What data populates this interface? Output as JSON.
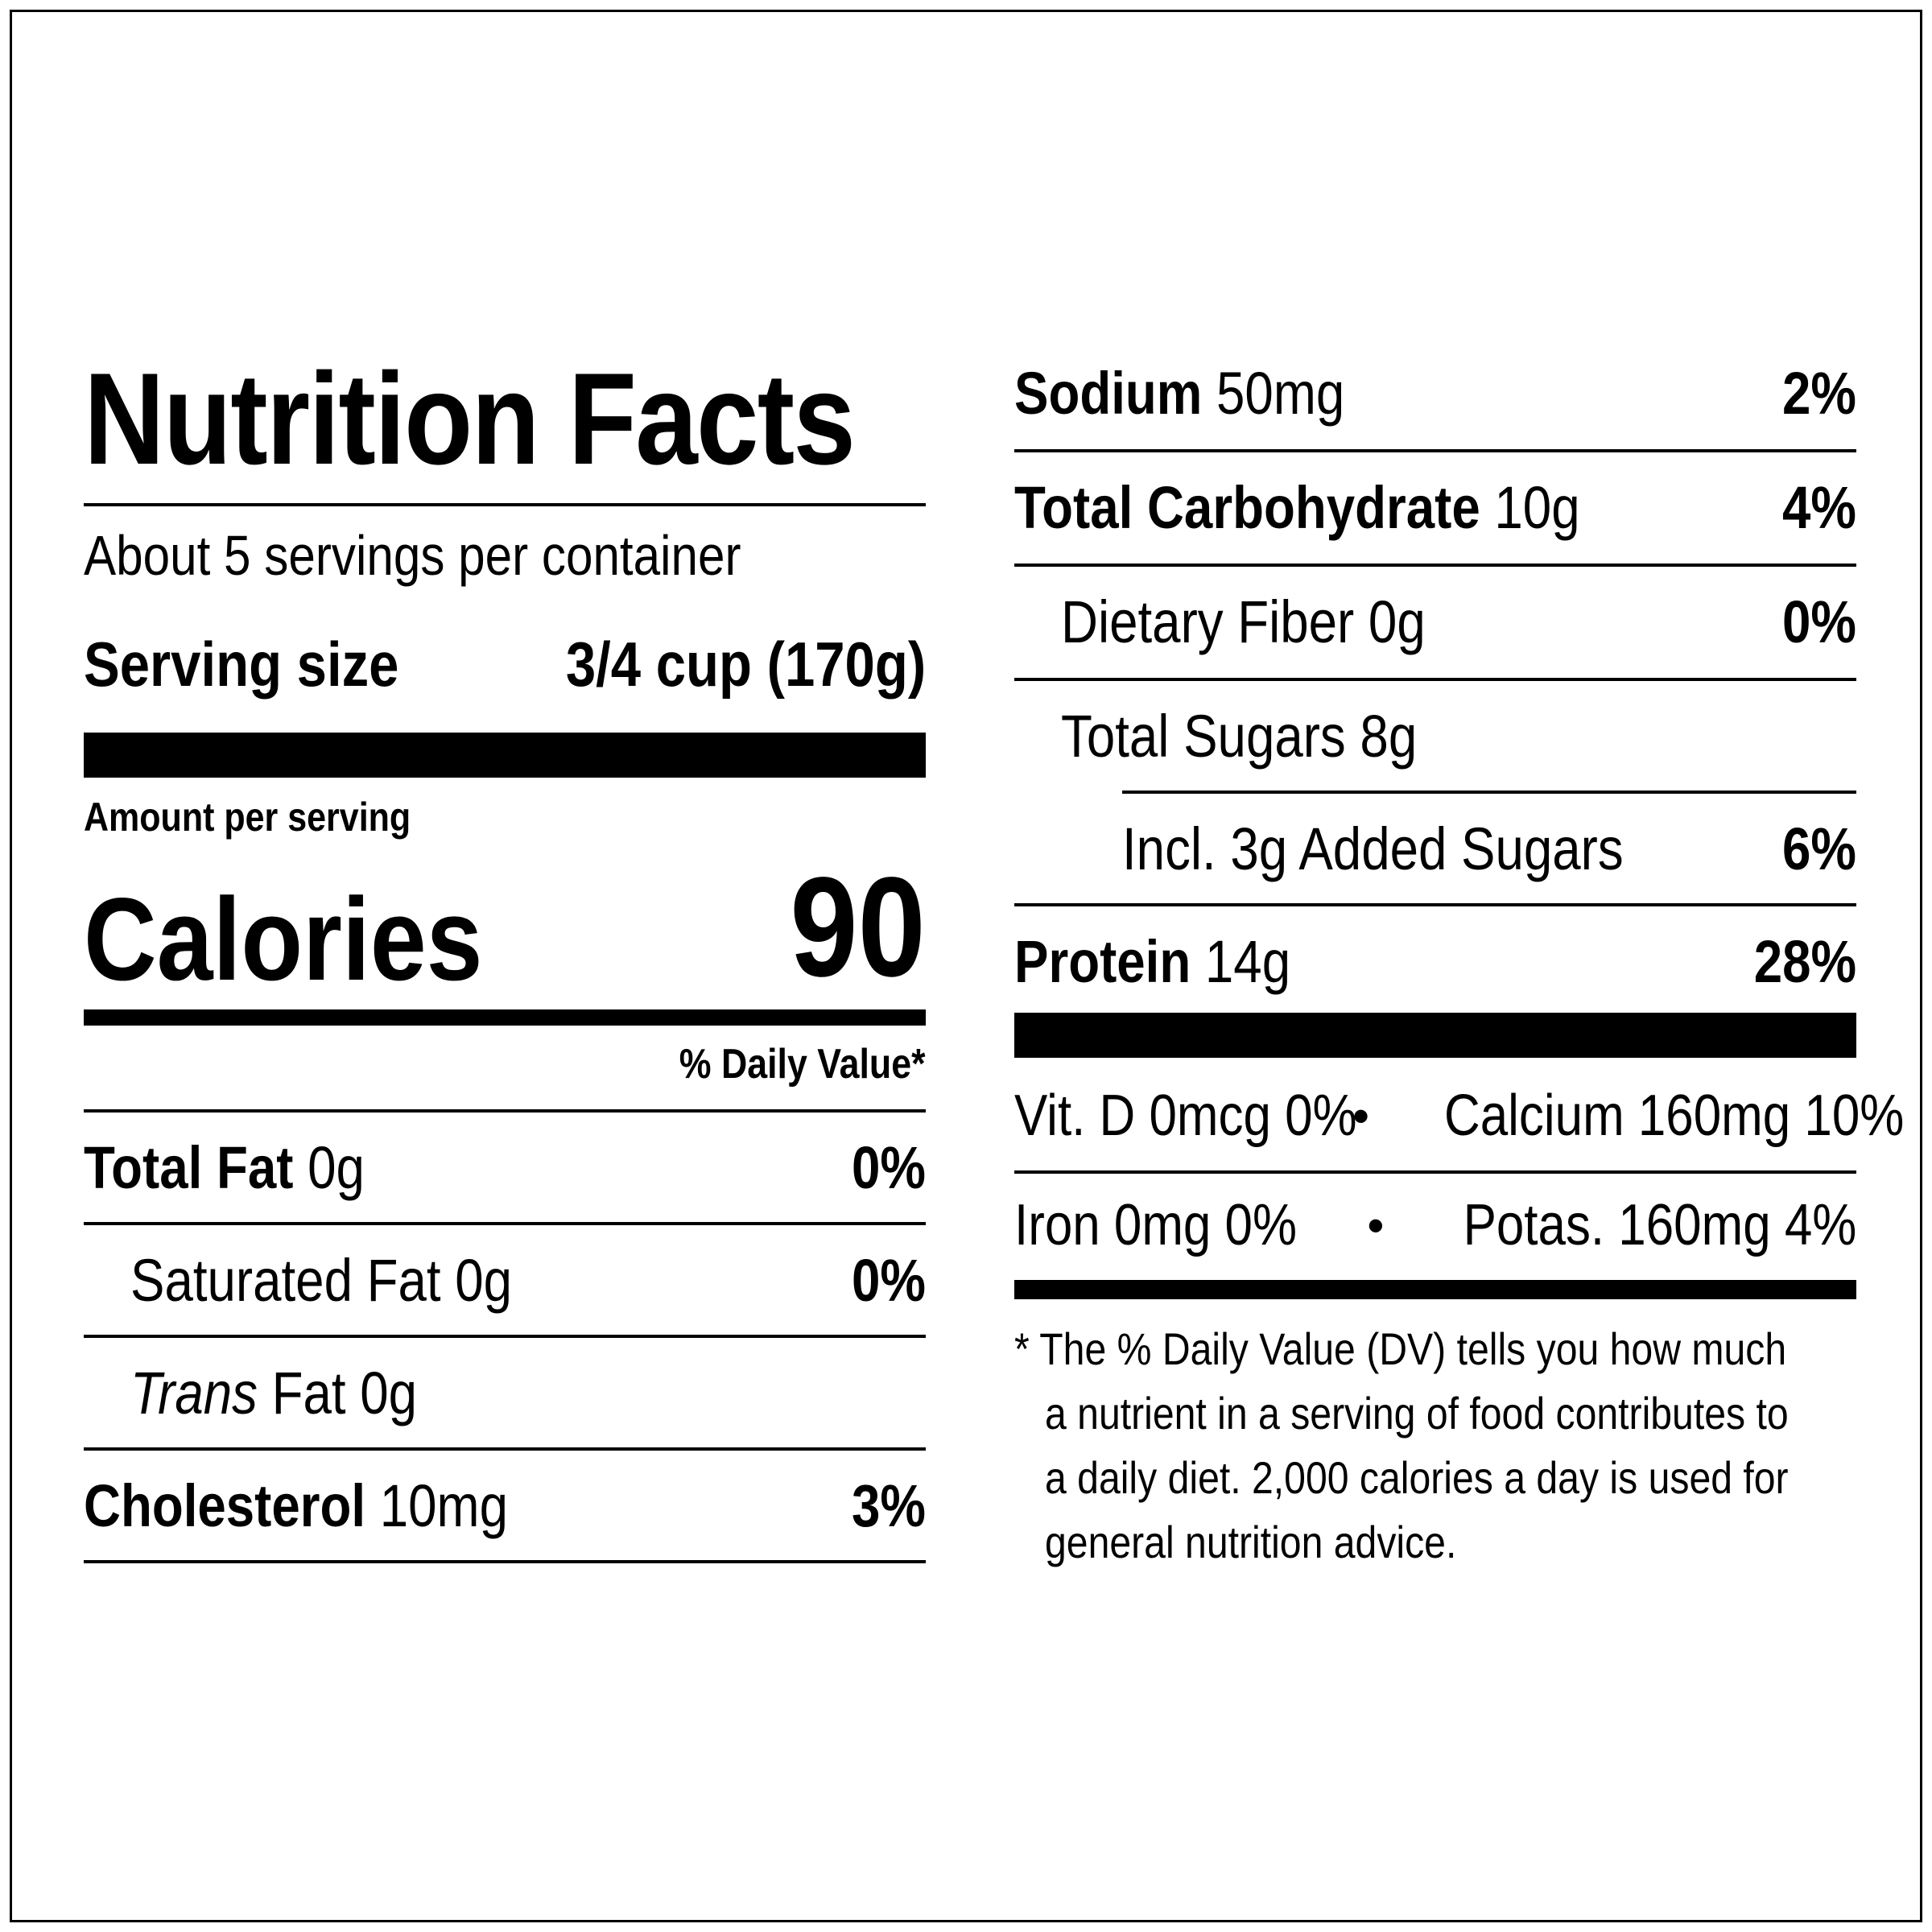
{
  "title": "Nutrition Facts",
  "servings_per_container": "About 5 servings per container",
  "serving_size": {
    "label": "Serving size",
    "value": "3/4 cup (170g)"
  },
  "amount_per_serving": "Amount per serving",
  "calories": {
    "label": "Calories",
    "value": "90"
  },
  "daily_value_header": "% Daily Value*",
  "left_nutrients": [
    {
      "name": "Total Fat",
      "amount": "0g",
      "dv": "0%"
    },
    {
      "name": "Saturated Fat 0g",
      "dv": "0%"
    },
    {
      "name_italic": "Trans",
      "name_rest": "Fat 0g"
    },
    {
      "name": "Cholesterol",
      "amount": "10mg",
      "dv": "3%"
    }
  ],
  "right_nutrients": [
    {
      "name": "Sodium",
      "amount": "50mg",
      "dv": "2%"
    },
    {
      "name": "Total Carbohydrate",
      "amount": "10g",
      "dv": "4%"
    },
    {
      "name": "Dietary Fiber 0g",
      "dv": "0%"
    },
    {
      "name": "Total Sugars 8g"
    },
    {
      "name": "Incl. 3g Added Sugars",
      "dv": "6%"
    },
    {
      "name": "Protein",
      "amount": "14g",
      "dv": "28%"
    }
  ],
  "vitamins": {
    "row1_left": "Vit. D 0mcg 0%",
    "row1_right": "Calcium 160mg 10%",
    "row2_left": "Iron 0mg 0%",
    "row2_right": "Potas. 160mg 4%",
    "bullet": "•"
  },
  "footnote": {
    "line1": "* The % Daily Value (DV) tells you how much",
    "line2": "a nutrient in a serving of food contributes to",
    "line3": "a daily diet. 2,000 calories a day is used for",
    "line4": "general nutrition advice."
  }
}
